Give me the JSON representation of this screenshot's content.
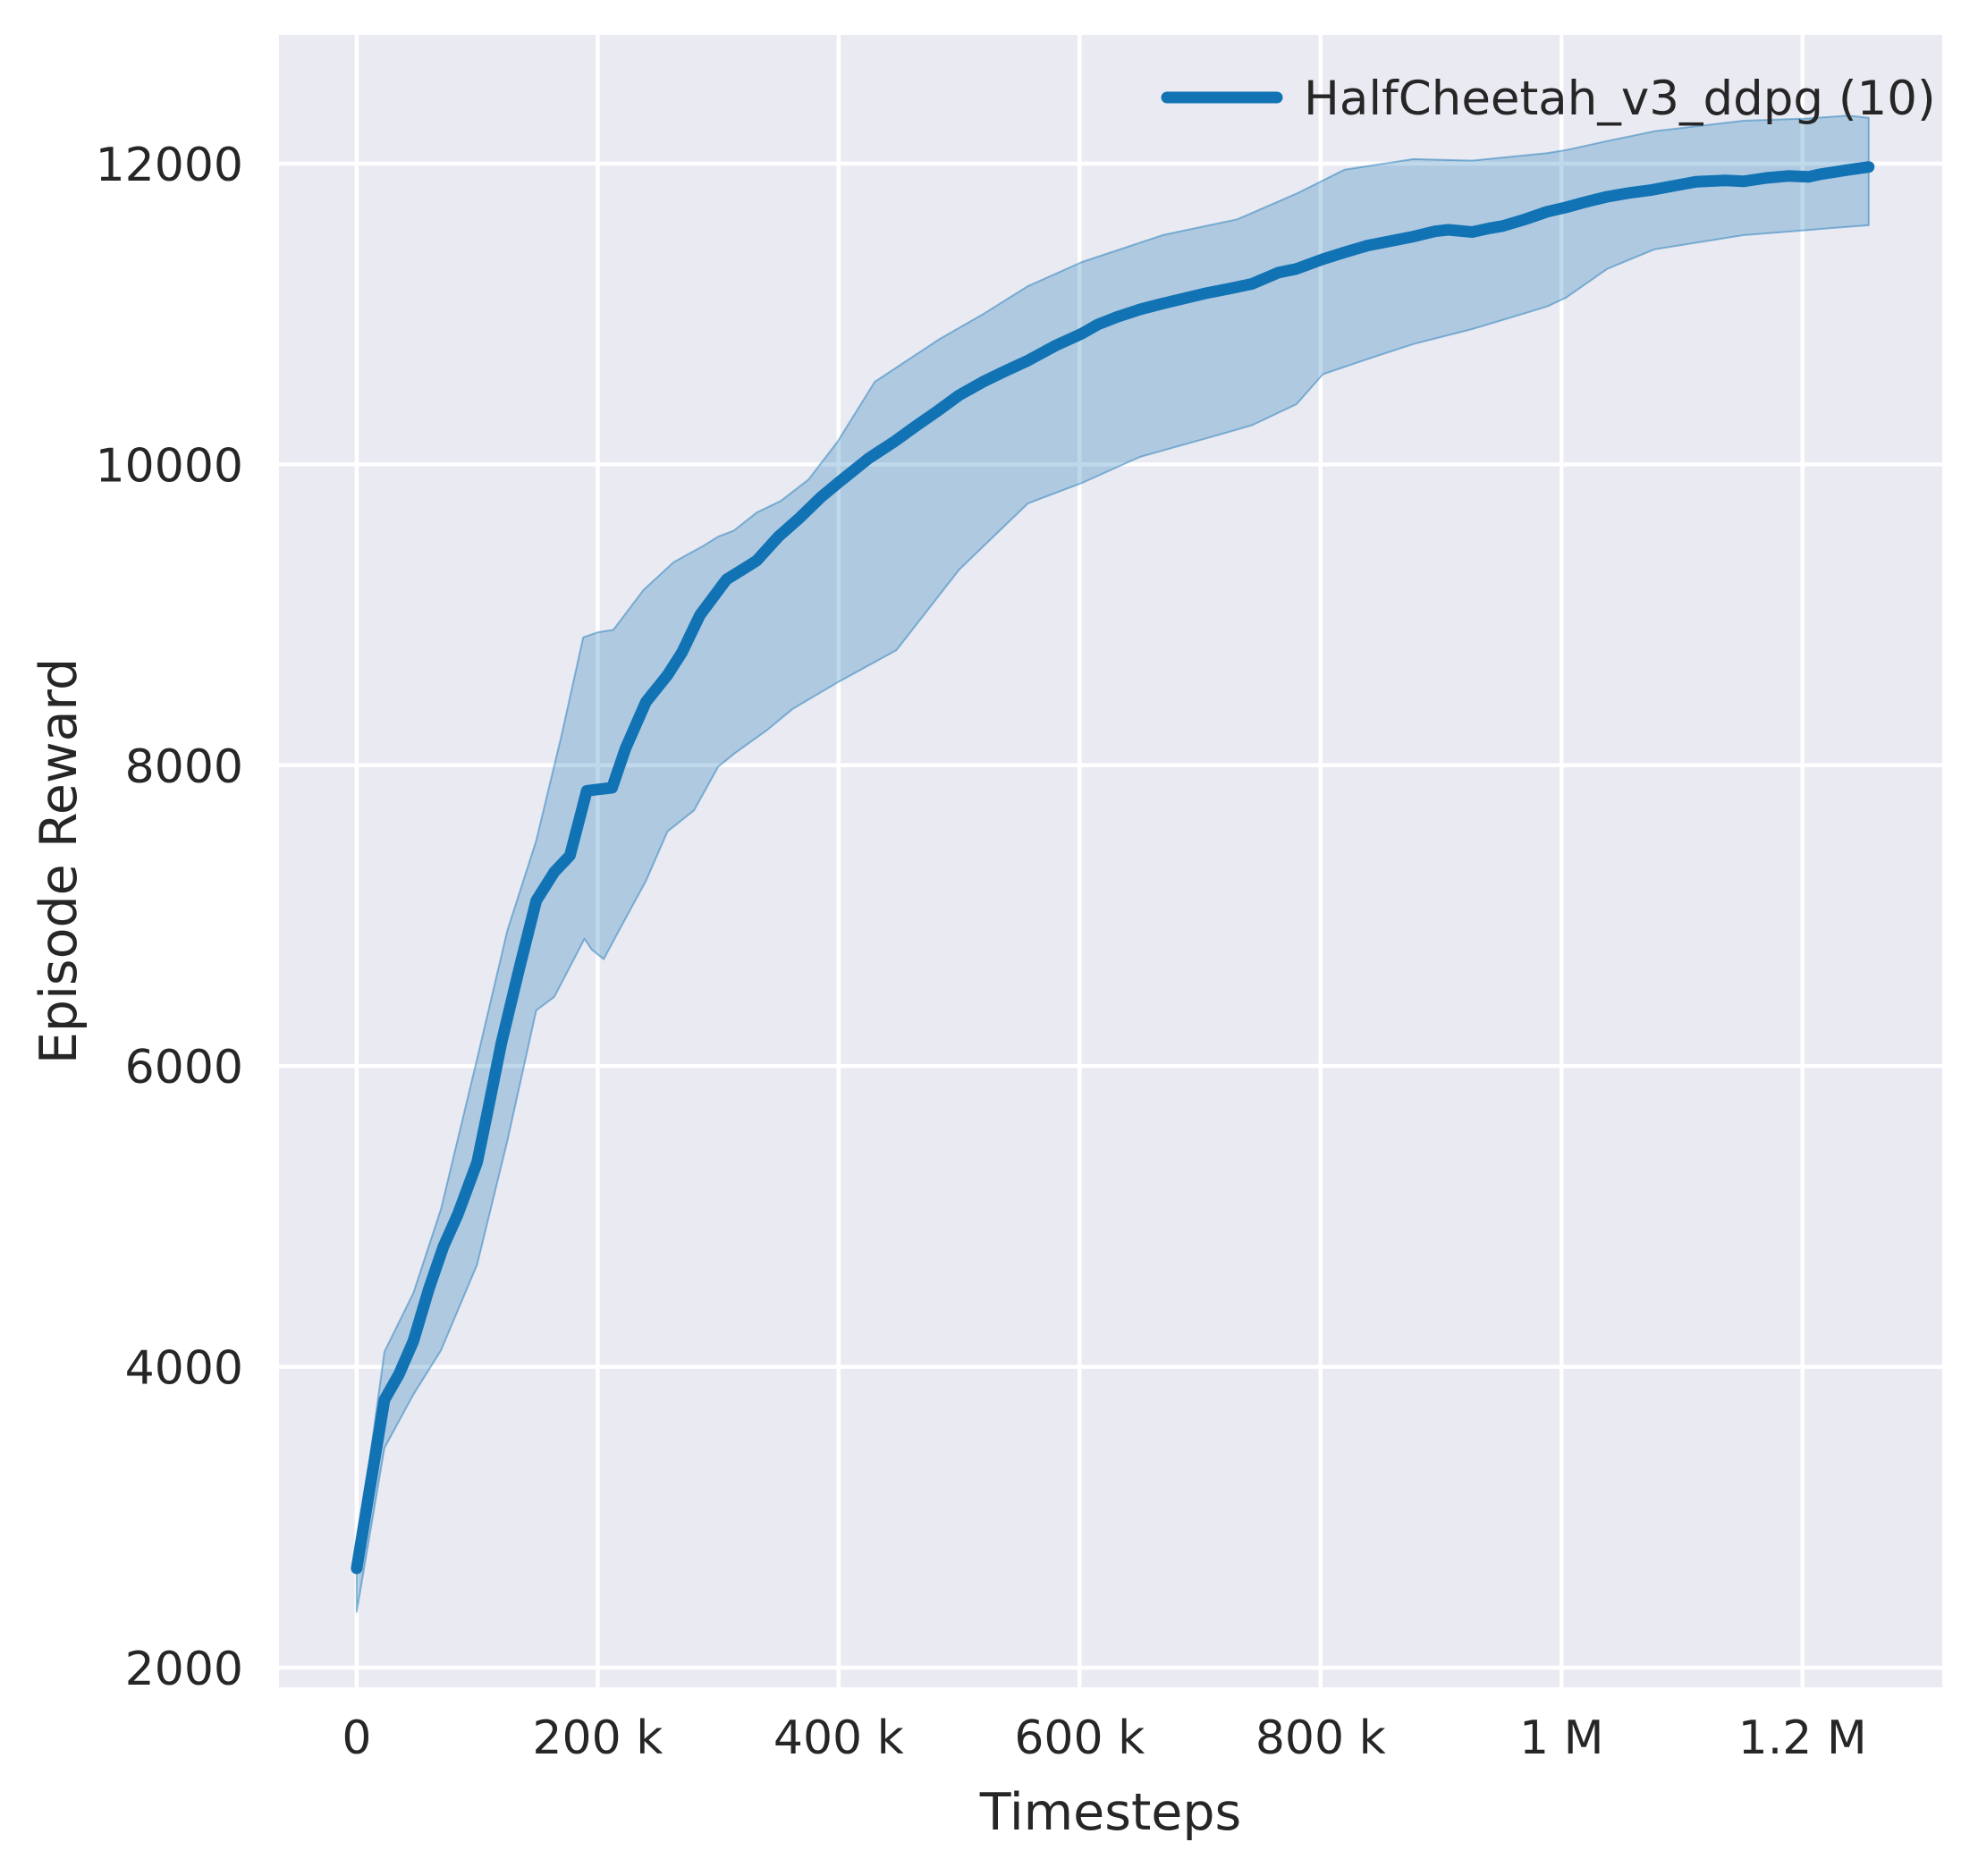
{
  "colors": {
    "figure_background": "#ffffff",
    "plot_background": "#eaeaf2",
    "grid": "#ffffff",
    "text": "#262626",
    "line": "#1173b4",
    "band_fill_alpha": 0.27,
    "band_edge_alpha": 0.45
  },
  "chart_data": {
    "type": "line",
    "title": "",
    "xlabel": "Timesteps",
    "ylabel": "Episode Reward",
    "grid": true,
    "legend": {
      "location": "upper right",
      "entries": [
        {
          "label": "HalfCheetah_v3_ddpg (10)",
          "color": "#1173b4"
        }
      ]
    },
    "xlim": [
      -64500,
      1316000
    ],
    "ylim": [
      1869,
      12856
    ],
    "x_ticks": [
      {
        "value": 0,
        "label": "0"
      },
      {
        "value": 200000,
        "label": "200 k"
      },
      {
        "value": 400000,
        "label": "400 k"
      },
      {
        "value": 600000,
        "label": "600 k"
      },
      {
        "value": 800000,
        "label": "800 k"
      },
      {
        "value": 1000000,
        "label": "1 M"
      },
      {
        "value": 1200000,
        "label": "1.2 M"
      }
    ],
    "y_ticks": [
      {
        "value": 2000,
        "label": "2000"
      },
      {
        "value": 4000,
        "label": "4000"
      },
      {
        "value": 6000,
        "label": "6000"
      },
      {
        "value": 8000,
        "label": "8000"
      },
      {
        "value": 10000,
        "label": "10000"
      },
      {
        "value": 12000,
        "label": "12000"
      }
    ],
    "series": [
      {
        "name": "HalfCheetah_v3_ddpg (10)",
        "color": "#1173b4",
        "points": [
          [
            0,
            2660
          ],
          [
            10000,
            3150
          ],
          [
            23000,
            3780
          ],
          [
            35000,
            3950
          ],
          [
            47000,
            4170
          ],
          [
            60000,
            4520
          ],
          [
            72000,
            4800
          ],
          [
            84000,
            5015
          ],
          [
            100000,
            5360
          ],
          [
            110000,
            5750
          ],
          [
            120000,
            6150
          ],
          [
            135000,
            6650
          ],
          [
            149000,
            7100
          ],
          [
            164000,
            7290
          ],
          [
            177000,
            7400
          ],
          [
            191000,
            7830
          ],
          [
            201000,
            7840
          ],
          [
            212000,
            7850
          ],
          [
            223000,
            8110
          ],
          [
            240000,
            8420
          ],
          [
            258000,
            8600
          ],
          [
            270000,
            8750
          ],
          [
            285000,
            9000
          ],
          [
            307000,
            9235
          ],
          [
            320000,
            9300
          ],
          [
            332000,
            9360
          ],
          [
            350000,
            9520
          ],
          [
            367000,
            9640
          ],
          [
            385000,
            9780
          ],
          [
            400000,
            9880
          ],
          [
            425000,
            10040
          ],
          [
            446000,
            10150
          ],
          [
            465000,
            10260
          ],
          [
            483000,
            10360
          ],
          [
            500000,
            10460
          ],
          [
            520000,
            10550
          ],
          [
            538000,
            10620
          ],
          [
            557000,
            10690
          ],
          [
            580000,
            10790
          ],
          [
            602000,
            10870
          ],
          [
            615000,
            10930
          ],
          [
            631000,
            10980
          ],
          [
            650000,
            11030
          ],
          [
            669000,
            11070
          ],
          [
            690000,
            11110
          ],
          [
            706000,
            11140
          ],
          [
            725000,
            11170
          ],
          [
            743000,
            11200
          ],
          [
            765000,
            11275
          ],
          [
            780000,
            11300
          ],
          [
            802000,
            11365
          ],
          [
            820000,
            11410
          ],
          [
            839000,
            11455
          ],
          [
            858000,
            11485
          ],
          [
            877000,
            11515
          ],
          [
            895000,
            11550
          ],
          [
            906000,
            11560
          ],
          [
            926000,
            11545
          ],
          [
            940000,
            11570
          ],
          [
            951000,
            11585
          ],
          [
            970000,
            11630
          ],
          [
            988000,
            11680
          ],
          [
            1004000,
            11710
          ],
          [
            1020000,
            11745
          ],
          [
            1038000,
            11780
          ],
          [
            1056000,
            11805
          ],
          [
            1075000,
            11825
          ],
          [
            1095000,
            11855
          ],
          [
            1112000,
            11880
          ],
          [
            1136000,
            11888
          ],
          [
            1151000,
            11882
          ],
          [
            1170000,
            11905
          ],
          [
            1188000,
            11918
          ],
          [
            1205000,
            11912
          ],
          [
            1215000,
            11930
          ],
          [
            1238000,
            11958
          ],
          [
            1255000,
            11978
          ]
        ],
        "band": {
          "upper": [
            [
              0,
              2750
            ],
            [
              23000,
              4100
            ],
            [
              47000,
              4490
            ],
            [
              70000,
              5050
            ],
            [
              100000,
              6050
            ],
            [
              125000,
              6900
            ],
            [
              149000,
              7500
            ],
            [
              170000,
              8200
            ],
            [
              188000,
              8850
            ],
            [
              200000,
              8884
            ],
            [
              213000,
              8900
            ],
            [
              238000,
              9165
            ],
            [
              263000,
              9350
            ],
            [
              288000,
              9460
            ],
            [
              300000,
              9520
            ],
            [
              313000,
              9560
            ],
            [
              332000,
              9680
            ],
            [
              352000,
              9757
            ],
            [
              375000,
              9900
            ],
            [
              399000,
              10150
            ],
            [
              430000,
              10550
            ],
            [
              483000,
              10830
            ],
            [
              520000,
              11000
            ],
            [
              557000,
              11185
            ],
            [
              602000,
              11346
            ],
            [
              669000,
              11525
            ],
            [
              731000,
              11630
            ],
            [
              780000,
              11800
            ],
            [
              820000,
              11960
            ],
            [
              877000,
              12030
            ],
            [
              926000,
              12020
            ],
            [
              988000,
              12070
            ],
            [
              1004000,
              12090
            ],
            [
              1038000,
              12150
            ],
            [
              1077000,
              12215
            ],
            [
              1151000,
              12285
            ],
            [
              1205000,
              12300
            ],
            [
              1238000,
              12320
            ],
            [
              1255000,
              12305
            ]
          ],
          "lower": [
            [
              0,
              2370
            ],
            [
              23000,
              3460
            ],
            [
              47000,
              3815
            ],
            [
              70000,
              4110
            ],
            [
              100000,
              4680
            ],
            [
              125000,
              5500
            ],
            [
              149000,
              6370
            ],
            [
              164000,
              6460
            ],
            [
              189000,
              6845
            ],
            [
              195000,
              6775
            ],
            [
              205000,
              6710
            ],
            [
              218000,
              6905
            ],
            [
              240000,
              7230
            ],
            [
              258000,
              7560
            ],
            [
              280000,
              7700
            ],
            [
              300000,
              7990
            ],
            [
              313000,
              8075
            ],
            [
              340000,
              8230
            ],
            [
              362000,
              8375
            ],
            [
              399000,
              8550
            ],
            [
              448000,
              8765
            ],
            [
              500000,
              9300
            ],
            [
              557000,
              9740
            ],
            [
              602000,
              9877
            ],
            [
              650000,
              10050
            ],
            [
              706000,
              10175
            ],
            [
              743000,
              10260
            ],
            [
              780000,
              10400
            ],
            [
              802000,
              10600
            ],
            [
              839000,
              10700
            ],
            [
              877000,
              10800
            ],
            [
              926000,
              10900
            ],
            [
              988000,
              11050
            ],
            [
              1004000,
              11110
            ],
            [
              1038000,
              11300
            ],
            [
              1077000,
              11430
            ],
            [
              1151000,
              11524
            ],
            [
              1225000,
              11572
            ],
            [
              1255000,
              11590
            ]
          ]
        }
      }
    ]
  }
}
